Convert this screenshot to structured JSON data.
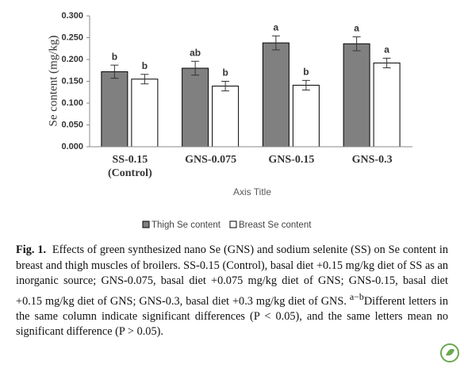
{
  "chart_data": {
    "type": "bar",
    "y_label": "Se content (mg/kg)",
    "x_label": "Axis Title",
    "categories": [
      "SS-0.15 (Control)",
      "GNS-0.075",
      "GNS-0.15",
      "GNS-0.3"
    ],
    "series": [
      {
        "name": "Thigh Se content",
        "color": "#808080",
        "values": [
          0.172,
          0.18,
          0.238,
          0.236
        ],
        "errors": [
          0.015,
          0.016,
          0.016,
          0.016
        ],
        "letters": [
          "b",
          "ab",
          "a",
          "a"
        ]
      },
      {
        "name": "Breast Se content",
        "color": "#ffffff",
        "values": [
          0.155,
          0.139,
          0.141,
          0.192
        ],
        "errors": [
          0.011,
          0.011,
          0.011,
          0.011
        ],
        "letters": [
          "b",
          "b",
          "b",
          "a"
        ]
      }
    ],
    "ylim": [
      0,
      0.3
    ],
    "yticks": [
      {
        "value": 0,
        "label": "0.000"
      },
      {
        "value": 0.05,
        "label": "0.050"
      },
      {
        "value": 0.1,
        "label": "0.100"
      },
      {
        "value": 0.15,
        "label": "0.150"
      },
      {
        "value": 0.2,
        "label": "0.200"
      },
      {
        "value": 0.25,
        "label": "0.250"
      },
      {
        "value": 0.3,
        "label": "0.300"
      }
    ],
    "grid": false
  },
  "caption": {
    "label": "Fig. 1.",
    "text1": "Effects of green synthesized nano Se (GNS) and sodium selenite (SS) on Se content in breast and thigh muscles of broilers. SS-0.15 (Control), basal diet +0.15 mg/kg diet of SS as an inorganic source; GNS-0.075, basal diet +0.075 mg/kg diet of GNS; GNS-0.15, basal diet +0.15 mg/kg diet of GNS; GNS-0.3, basal diet +0.3 mg/kg diet of GNS.",
    "superscript": "a−b",
    "text2": "Different letters in the same column indicate significant differences (P < 0.05), and the same letters mean no significant difference (P > 0.05)."
  }
}
